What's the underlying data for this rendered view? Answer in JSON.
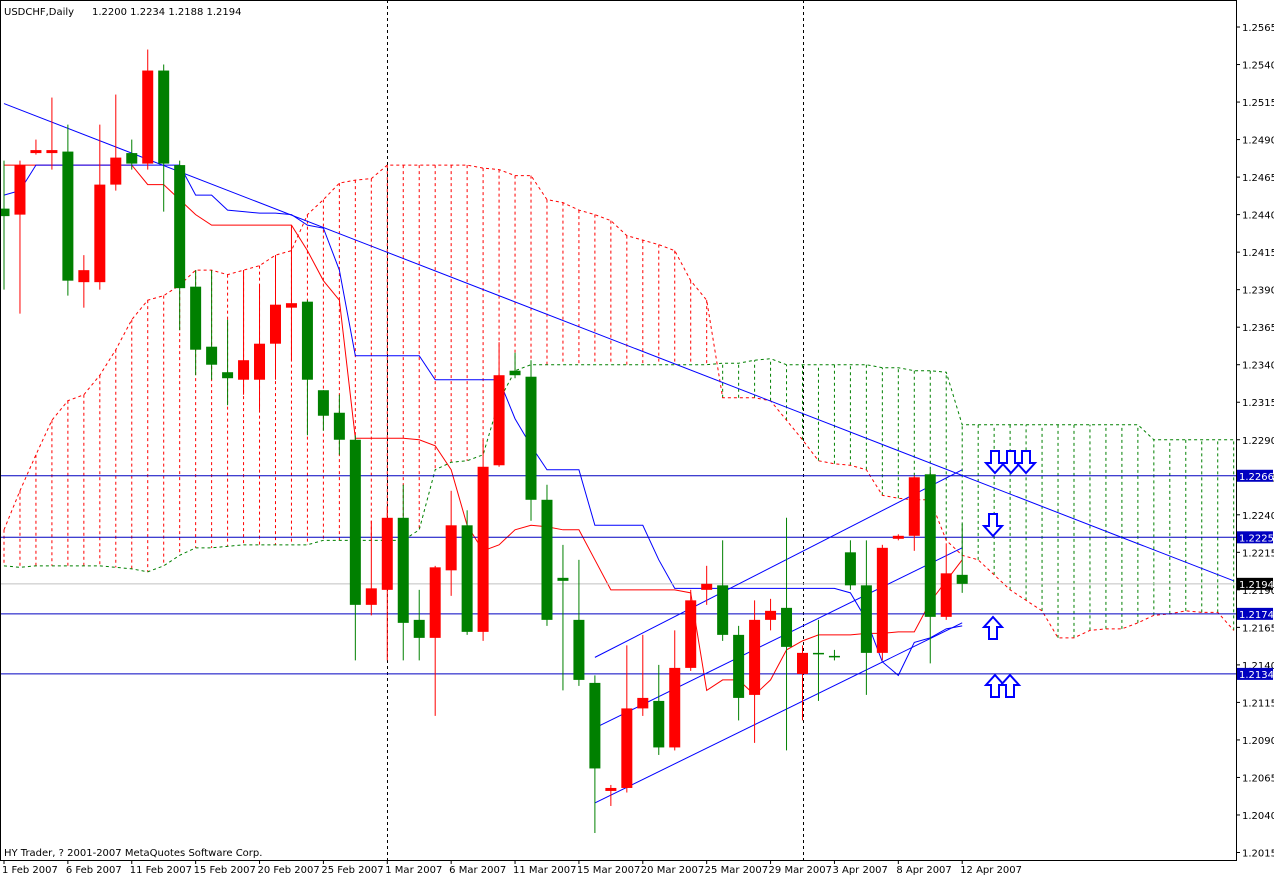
{
  "chart_data": {
    "type": "candlestick",
    "title": "USDCHF,Daily",
    "quote": "1.2200 1.2234 1.2188 1.2194",
    "copyright": "HY Trader, ? 2001-2007 MetaQuotes Software Corp.",
    "categories": [
      "1 Feb 2007",
      null,
      null,
      null,
      "6 Feb 2007",
      null,
      null,
      null,
      "11 Feb 2007",
      null,
      null,
      null,
      "15 Feb 2007",
      null,
      null,
      null,
      "20 Feb 2007",
      null,
      null,
      null,
      "25 Feb 2007",
      null,
      null,
      null,
      "1 Mar 2007",
      null,
      null,
      null,
      "6 Mar 2007",
      null,
      null,
      null,
      "11 Mar 2007",
      null,
      null,
      null,
      "15 Mar 2007",
      null,
      null,
      null,
      "20 Mar 2007",
      null,
      null,
      null,
      "25 Mar 2007",
      null,
      null,
      null,
      "29 Mar 2007",
      null,
      null,
      null,
      "3 Apr 2007",
      null,
      null,
      null,
      "8 Apr 2007",
      null,
      null,
      null,
      "12 Apr 2007"
    ],
    "open": [
      1.2444,
      1.244,
      1.2481,
      1.2481,
      1.2482,
      1.2395,
      1.2395,
      1.246,
      1.2481,
      1.2474,
      1.2536,
      1.2473,
      1.2392,
      1.2352,
      1.2335,
      1.233,
      1.233,
      1.2354,
      1.2378,
      1.2382,
      1.2323,
      1.2308,
      1.229,
      1.218,
      1.219,
      1.2238,
      1.217,
      1.2158,
      1.2203,
      1.2233,
      1.2162,
      1.2273,
      1.2336,
      1.2332,
      1.225,
      1.2198,
      1.217,
      1.2128,
      1.2056,
      1.2058,
      1.2111,
      1.2116,
      1.2085,
      1.2138,
      1.219,
      1.2193,
      1.216,
      1.212,
      1.217,
      1.2178,
      1.2134,
      1.2148,
      1.2146,
      1.2215,
      1.2193,
      1.2148,
      1.2224,
      1.2226,
      1.2267,
      1.2172,
      1.22
    ],
    "high": [
      1.2476,
      1.2476,
      1.249,
      1.2518,
      1.25,
      1.2413,
      1.25,
      1.252,
      1.249,
      1.255,
      1.254,
      1.2476,
      1.2403,
      1.2403,
      1.237,
      1.2403,
      1.2393,
      1.2413,
      1.2433,
      1.2383,
      1.2323,
      1.232,
      1.2293,
      1.2236,
      1.2246,
      1.226,
      1.219,
      1.2206,
      1.2256,
      1.2243,
      1.229,
      1.2355,
      1.2348,
      1.2343,
      1.226,
      1.222,
      1.221,
      1.2133,
      1.206,
      1.2153,
      1.216,
      1.214,
      1.2163,
      1.219,
      1.2206,
      1.2223,
      1.2166,
      1.2183,
      1.2184,
      1.2238,
      1.2153,
      1.217,
      1.215,
      1.2223,
      1.2223,
      1.222,
      1.2227,
      1.2266,
      1.227,
      1.2221,
      1.2234
    ],
    "low": [
      1.239,
      1.2374,
      1.248,
      1.247,
      1.2386,
      1.2378,
      1.239,
      1.2456,
      1.247,
      1.247,
      1.2442,
      1.2363,
      1.2333,
      1.233,
      1.2313,
      1.232,
      1.231,
      1.233,
      1.2343,
      1.2293,
      1.2296,
      1.228,
      1.2143,
      1.2173,
      1.2143,
      1.2143,
      1.2143,
      1.2106,
      1.2186,
      1.216,
      1.2156,
      1.2272,
      1.2331,
      1.2236,
      1.2166,
      1.2123,
      1.2126,
      1.2028,
      1.2046,
      1.2055,
      1.2106,
      1.208,
      1.2083,
      1.2136,
      1.218,
      1.2156,
      1.2103,
      1.2088,
      1.2163,
      1.2083,
      1.2103,
      1.2116,
      1.2143,
      1.219,
      1.212,
      1.2143,
      1.2223,
      1.2216,
      1.2141,
      1.217,
      1.2188
    ],
    "close": [
      1.2439,
      1.2473,
      1.2483,
      1.2483,
      1.2396,
      1.2403,
      1.246,
      1.2478,
      1.2474,
      1.2536,
      1.2474,
      1.2391,
      1.235,
      1.234,
      1.2331,
      1.2343,
      1.2354,
      1.238,
      1.2381,
      1.233,
      1.2306,
      1.229,
      1.218,
      1.2191,
      1.2238,
      1.2168,
      1.2158,
      1.2205,
      1.2233,
      1.2162,
      1.2272,
      1.2333,
      1.2333,
      1.225,
      1.217,
      1.2196,
      1.213,
      1.2071,
      1.2058,
      1.2111,
      1.2118,
      1.2085,
      1.2138,
      1.2183,
      1.2194,
      1.216,
      1.2118,
      1.217,
      1.2176,
      1.2152,
      1.2148,
      1.2147,
      1.2145,
      1.2193,
      1.2148,
      1.2218,
      1.2226,
      1.2265,
      1.2172,
      1.2201,
      1.2194
    ],
    "up_color": "#ff0000",
    "down_color": "#008000",
    "lines": [
      {
        "color": "#ff0000",
        "values": [
          1.2473,
          1.2473,
          1.2473,
          1.2473,
          1.2473,
          1.2473,
          1.2473,
          1.2473,
          1.2473,
          1.246,
          1.246,
          1.245,
          1.244,
          1.2433,
          1.2433,
          1.2433,
          1.2433,
          1.2433,
          1.2433,
          1.2416,
          1.2396,
          1.2383,
          1.2291,
          1.2291,
          1.2291,
          1.2291,
          1.229,
          1.2286,
          1.227,
          1.2233,
          1.2216,
          1.222,
          1.223,
          1.2233,
          1.2232,
          1.223,
          1.223,
          1.221,
          1.219,
          1.219,
          1.219,
          1.219,
          1.219,
          1.2188,
          1.2123,
          1.213,
          1.213,
          1.212,
          1.213,
          1.215,
          1.2156,
          1.216,
          1.216,
          1.216,
          1.2161,
          1.2161,
          1.2162,
          1.2162,
          1.2182,
          1.2196,
          1.221
        ]
      },
      {
        "color": "#0000ff",
        "values": [
          1.2453,
          1.2456,
          1.2473,
          1.2473,
          1.2473,
          1.2473,
          1.2473,
          1.2473,
          1.2473,
          1.2473,
          1.2473,
          1.2473,
          1.2453,
          1.2453,
          1.2443,
          1.2442,
          1.2441,
          1.2441,
          1.244,
          1.2433,
          1.2431,
          1.2403,
          1.2346,
          1.2346,
          1.2346,
          1.2346,
          1.2346,
          1.233,
          1.233,
          1.233,
          1.233,
          1.233,
          1.2304,
          1.2286,
          1.227,
          1.227,
          1.227,
          1.2233,
          1.2233,
          1.2233,
          1.2233,
          1.221,
          1.2191,
          1.2191,
          1.2191,
          1.2191,
          1.2191,
          1.2191,
          1.2191,
          1.2191,
          1.2191,
          1.2191,
          1.2191,
          1.2188,
          1.217,
          1.2142,
          1.2133,
          1.2155,
          1.2158,
          1.2164,
          1.2166
        ]
      }
    ],
    "cloud": {
      "span_a_color": "#ff0000",
      "span_b_color": "#008000",
      "span_a": [
        1.223,
        1.2256,
        1.228,
        1.2303,
        1.2316,
        1.232,
        1.2333,
        1.235,
        1.237,
        1.2383,
        1.2386,
        1.2393,
        1.2403,
        1.2403,
        1.24,
        1.2403,
        1.2406,
        1.2413,
        1.2416,
        1.244,
        1.245,
        1.2461,
        1.2463,
        1.2464,
        1.2473,
        1.2473,
        1.2473,
        1.2473,
        1.2473,
        1.2473,
        1.2471,
        1.247,
        1.2466,
        1.2466,
        1.245,
        1.2448,
        1.2443,
        1.244,
        1.2436,
        1.2426,
        1.2423,
        1.242,
        1.2416,
        1.2396,
        1.2383,
        1.2318,
        1.2318,
        1.2318,
        1.2316,
        1.2303,
        1.229,
        1.2276,
        1.2274,
        1.2273,
        1.227,
        1.2253,
        1.2251,
        1.225,
        1.225,
        1.2223,
        1.2213,
        1.221,
        1.22,
        1.219,
        1.2183,
        1.2176,
        1.2158,
        1.2158,
        1.2163,
        1.2164,
        1.2164,
        1.2168,
        1.2173,
        1.2174,
        1.2176,
        1.2175,
        1.2175,
        1.2163
      ],
      "span_b": [
        1.2206,
        1.2205,
        1.2206,
        1.2206,
        1.2206,
        1.2206,
        1.2206,
        1.2205,
        1.2204,
        1.2202,
        1.2206,
        1.2213,
        1.2218,
        1.2218,
        1.2219,
        1.222,
        1.222,
        1.222,
        1.222,
        1.222,
        1.2223,
        1.2223,
        1.2223,
        1.2223,
        1.2223,
        1.2223,
        1.223,
        1.227,
        1.2275,
        1.2276,
        1.228,
        1.2316,
        1.2336,
        1.234,
        1.234,
        1.234,
        1.234,
        1.234,
        1.234,
        1.234,
        1.234,
        1.234,
        1.234,
        1.234,
        1.234,
        1.2341,
        1.2341,
        1.2343,
        1.2344,
        1.234,
        1.234,
        1.234,
        1.234,
        1.234,
        1.234,
        1.2338,
        1.2338,
        1.2336,
        1.2336,
        1.2335,
        1.23,
        1.23,
        1.23,
        1.23,
        1.23,
        1.23,
        1.23,
        1.23,
        1.23,
        1.23,
        1.23,
        1.23,
        1.229,
        1.229,
        1.229,
        1.229,
        1.229,
        1.229
      ]
    },
    "trendlines": [
      {
        "from": [
          0,
          1.2514
        ],
        "to": [
          77,
          1.2196
        ],
        "color": "#0000ff"
      },
      {
        "from": [
          37,
          1.2145
        ],
        "to": [
          60,
          1.227
        ],
        "color": "#0000ff"
      },
      {
        "from": [
          37,
          1.2098
        ],
        "to": [
          60,
          1.2218
        ],
        "color": "#0000ff"
      },
      {
        "from": [
          37,
          1.2048
        ],
        "to": [
          60,
          1.2168
        ],
        "color": "#0000ff"
      }
    ],
    "hlines": [
      {
        "value": 1.2266,
        "color": "#0000c0",
        "label_color": "#0000c0"
      },
      {
        "value": 1.2225,
        "color": "#0000c0",
        "label_color": "#0000c0"
      },
      {
        "value": 1.2194,
        "color": "#c0c0c0",
        "label_color": "#000000"
      },
      {
        "value": 1.2174,
        "color": "#0000c0",
        "label_color": "#0000c0"
      },
      {
        "value": 1.2134,
        "color": "#0000c0",
        "label_color": "#0000c0"
      }
    ],
    "ylim": [
      1.201,
      1.2583
    ],
    "yticks": [
      1.2565,
      {
        "value": 1.254,
        "label": "1.2540"
      },
      1.2515,
      {
        "value": 1.249,
        "label": "1.2490"
      },
      1.2465,
      {
        "value": 1.244,
        "label": "1.2440"
      },
      1.2415,
      {
        "value": 1.239,
        "label": "1.2390"
      },
      1.2365,
      {
        "value": 1.234,
        "label": "1.2340"
      },
      1.2315,
      {
        "value": 1.229,
        "label": "1.2290"
      },
      1.2265,
      {
        "value": 1.224,
        "label": "1.2240"
      },
      1.2215,
      {
        "value": 1.219,
        "label": "1.2190"
      },
      1.2165,
      {
        "value": 1.214,
        "label": "1.2140"
      },
      1.2115,
      {
        "value": 1.209,
        "label": "1.2090"
      },
      1.2065,
      {
        "value": 1.204,
        "label": "1.2040"
      },
      1.2015
    ]
  }
}
